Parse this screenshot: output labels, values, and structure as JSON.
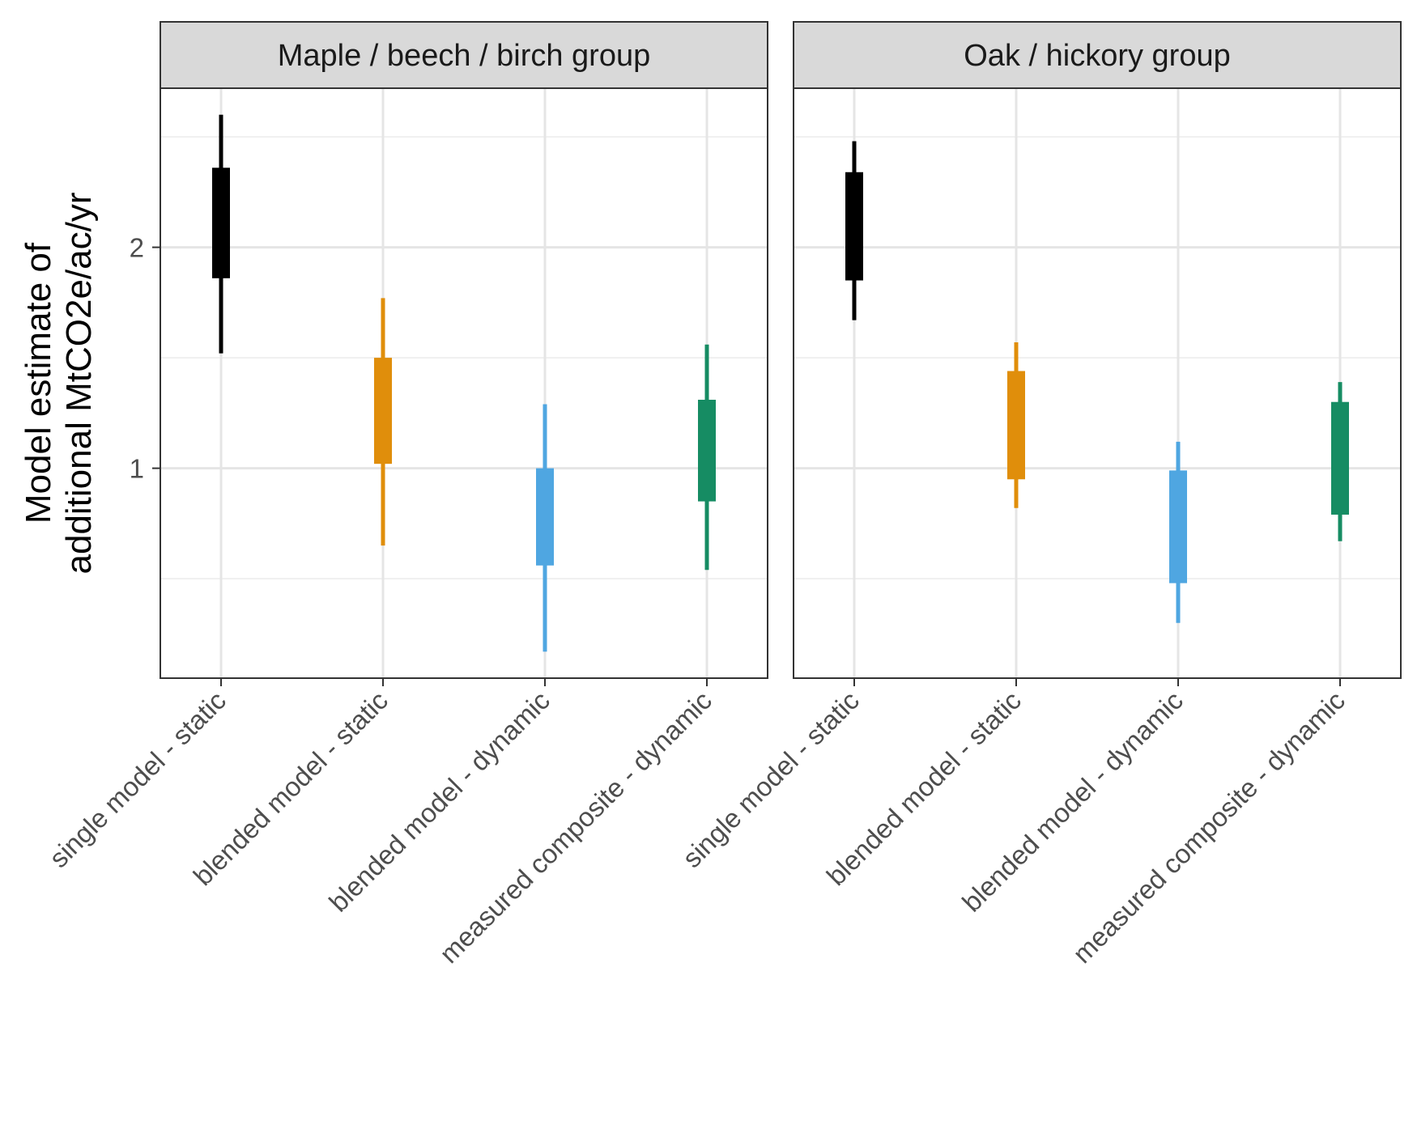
{
  "chart_data": {
    "type": "interval",
    "ylabel_lines": [
      "Model estimate of",
      "additional MtCO2e/ac/yr"
    ],
    "ylim": [
      0.05,
      2.72
    ],
    "y_ticks": [
      1,
      2
    ],
    "y_minor_ticks": [
      0.5,
      1.5,
      2.5
    ],
    "grid": true,
    "categories": [
      "single model - static",
      "blended model - static",
      "blended model - dynamic",
      "measured composite - dynamic"
    ],
    "colors": [
      "#000000",
      "#E08E0B",
      "#4FA6E1",
      "#168C63"
    ],
    "panels": [
      {
        "title": "Maple / beech / birch group",
        "intervals": [
          {
            "outer": [
              1.52,
              2.6
            ],
            "inner": [
              1.86,
              2.36
            ]
          },
          {
            "outer": [
              0.65,
              1.77
            ],
            "inner": [
              1.02,
              1.5
            ]
          },
          {
            "outer": [
              0.17,
              1.29
            ],
            "inner": [
              0.56,
              1.0
            ]
          },
          {
            "outer": [
              0.54,
              1.56
            ],
            "inner": [
              0.85,
              1.31
            ]
          }
        ]
      },
      {
        "title": "Oak / hickory group",
        "intervals": [
          {
            "outer": [
              1.67,
              2.48
            ],
            "inner": [
              1.85,
              2.34
            ]
          },
          {
            "outer": [
              0.82,
              1.57
            ],
            "inner": [
              0.95,
              1.44
            ]
          },
          {
            "outer": [
              0.3,
              1.12
            ],
            "inner": [
              0.48,
              0.99
            ]
          },
          {
            "outer": [
              0.67,
              1.39
            ],
            "inner": [
              0.79,
              1.3
            ]
          }
        ]
      }
    ]
  }
}
